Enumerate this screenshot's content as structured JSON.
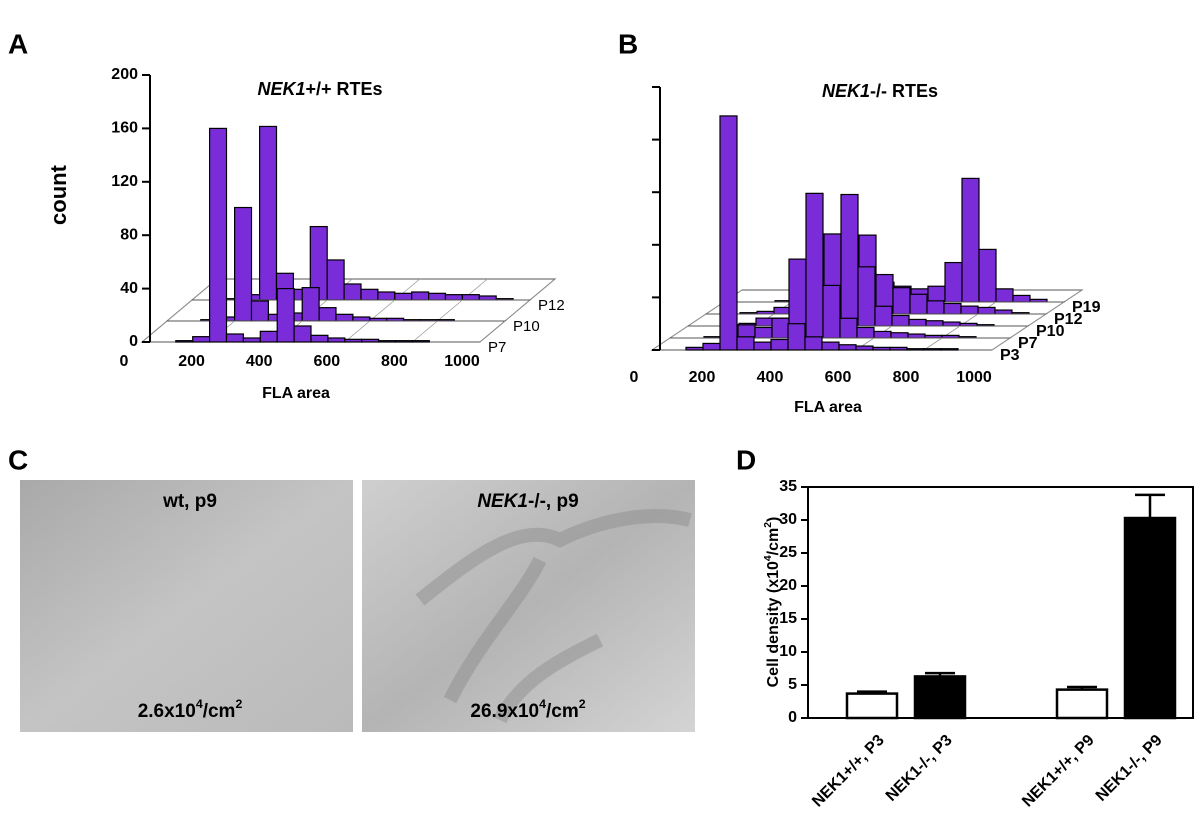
{
  "chart_data": [
    {
      "type": "histogram3d",
      "panel": "A",
      "title": [
        "NEK1",
        "+/+ RTEs"
      ],
      "xlabel": "FLA area",
      "ylabel": "count",
      "bins": [
        0,
        50,
        100,
        150,
        200,
        250,
        300,
        350,
        400,
        450,
        500,
        550,
        600,
        650,
        700,
        750,
        800,
        850,
        900,
        950,
        1000
      ],
      "series": [
        {
          "name": "P7",
          "color": "#7b2cd9",
          "values": [
            0,
            0,
            1,
            4,
            160,
            6,
            3,
            8,
            40,
            12,
            5,
            3,
            2,
            2,
            1,
            1,
            1,
            0,
            0,
            0
          ]
        },
        {
          "name": "P10",
          "color": "#7b2cd9",
          "values": [
            0,
            0,
            1,
            3,
            85,
            15,
            5,
            6,
            25,
            10,
            5,
            3,
            2,
            2,
            1,
            1,
            1,
            0,
            0,
            0
          ]
        },
        {
          "name": "P12",
          "color": "#7b2cd9",
          "values": [
            0,
            0,
            1,
            4,
            130,
            20,
            8,
            55,
            30,
            12,
            8,
            6,
            5,
            6,
            5,
            4,
            4,
            3,
            1,
            0
          ]
        }
      ],
      "xlim": [
        0,
        1000
      ],
      "xticks": [
        0,
        200,
        400,
        600,
        800,
        1000
      ],
      "ylim": [
        0,
        200
      ],
      "yticks": [
        0,
        40,
        80,
        120,
        160,
        200
      ],
      "ytick_labels": true
    },
    {
      "type": "histogram3d",
      "panel": "B",
      "title": [
        "NEK1",
        "-/- RTEs"
      ],
      "xlabel": "FLA area",
      "bins": [
        0,
        50,
        100,
        150,
        200,
        250,
        300,
        350,
        400,
        450,
        500,
        550,
        600,
        650,
        700,
        750,
        800,
        850,
        900,
        950,
        1000
      ],
      "series": [
        {
          "name": "P3",
          "color": "#7b2cd9",
          "values": [
            0,
            0,
            2,
            5,
            178,
            10,
            6,
            8,
            20,
            10,
            6,
            4,
            3,
            2,
            2,
            1,
            1,
            1,
            0,
            0
          ]
        },
        {
          "name": "P7",
          "color": "#7b2cd9",
          "values": [
            0,
            0,
            1,
            3,
            10,
            8,
            15,
            60,
            110,
            40,
            15,
            8,
            5,
            4,
            3,
            2,
            2,
            1,
            0,
            0
          ]
        },
        {
          "name": "P10",
          "color": "#7b2cd9",
          "values": [
            0,
            0,
            1,
            2,
            6,
            6,
            10,
            30,
            70,
            100,
            45,
            15,
            8,
            5,
            4,
            3,
            2,
            1,
            0,
            0
          ]
        },
        {
          "name": "P12",
          "color": "#7b2cd9",
          "values": [
            0,
            0,
            1,
            2,
            5,
            5,
            8,
            20,
            40,
            60,
            30,
            20,
            15,
            10,
            8,
            6,
            5,
            3,
            1,
            0
          ]
        },
        {
          "name": "P19",
          "color": "#7b2cd9",
          "values": [
            0,
            0,
            0,
            1,
            3,
            3,
            4,
            8,
            12,
            15,
            12,
            10,
            12,
            30,
            94,
            40,
            10,
            5,
            2,
            0
          ]
        }
      ],
      "xlim": [
        0,
        1000
      ],
      "xticks": [
        0,
        200,
        400,
        600,
        800,
        1000
      ],
      "ylim": [
        0,
        200
      ],
      "yticks": [
        0,
        40,
        80,
        120,
        160,
        200
      ],
      "ytick_labels": false
    },
    {
      "type": "bar",
      "panel": "D",
      "ylabel": [
        "Cell density (x10",
        "4",
        "/cm",
        "2",
        ")"
      ],
      "categories": [
        "NEK1+/+, P3",
        "NEK1-/-, P3",
        "NEK1+/+, P9",
        "NEK1-/-, P9"
      ],
      "values": [
        3.7,
        6.3,
        4.3,
        30.3
      ],
      "errors": [
        0.3,
        0.5,
        0.4,
        3.5
      ],
      "colors": [
        "#ffffff",
        "#000000",
        "#ffffff",
        "#000000"
      ],
      "ylim": [
        0,
        35
      ],
      "yticks": [
        0,
        5,
        10,
        15,
        20,
        25,
        30,
        35
      ]
    }
  ],
  "panel_c": {
    "panel": "C",
    "photos": [
      {
        "label": [
          "wt, p9"
        ],
        "density": [
          "2.6x10",
          "4",
          "/cm",
          "2"
        ]
      },
      {
        "label": [
          "NEK1",
          "-/-, p9"
        ],
        "density": [
          "26.9x10",
          "4",
          "/cm",
          "2"
        ]
      }
    ]
  }
}
